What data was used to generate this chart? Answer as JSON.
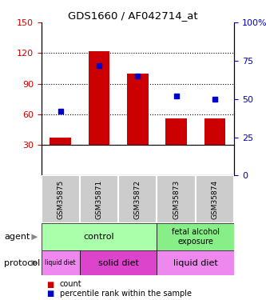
{
  "title": "GDS1660 / AF042714_at",
  "samples": [
    "GSM35875",
    "GSM35871",
    "GSM35872",
    "GSM35873",
    "GSM35874"
  ],
  "counts": [
    37,
    122,
    100,
    56,
    56
  ],
  "percentile_ranks": [
    42,
    72,
    65,
    52,
    50
  ],
  "ylim_left": [
    0,
    150
  ],
  "ylim_right": [
    0,
    100
  ],
  "yticks_left": [
    30,
    60,
    90,
    120,
    150
  ],
  "yticks_right": [
    0,
    25,
    50,
    75,
    100
  ],
  "bar_color": "#cc0000",
  "dot_color": "#0000cc",
  "bar_bottom": 30,
  "tick_label_color_left": "#cc0000",
  "tick_label_color_right": "#0000cc",
  "agent_label": "agent",
  "protocol_label": "protocol",
  "legend_count_label": "count",
  "legend_pct_label": "percentile rank within the sample",
  "control_color": "#aaffaa",
  "fae_color": "#88ee88",
  "liquid_diet_color": "#ee88ee",
  "solid_diet_color": "#dd44cc",
  "sample_box_color": "#cccccc",
  "agent_arrow_color": "#888888",
  "protocol_arrow_color": "#888888"
}
